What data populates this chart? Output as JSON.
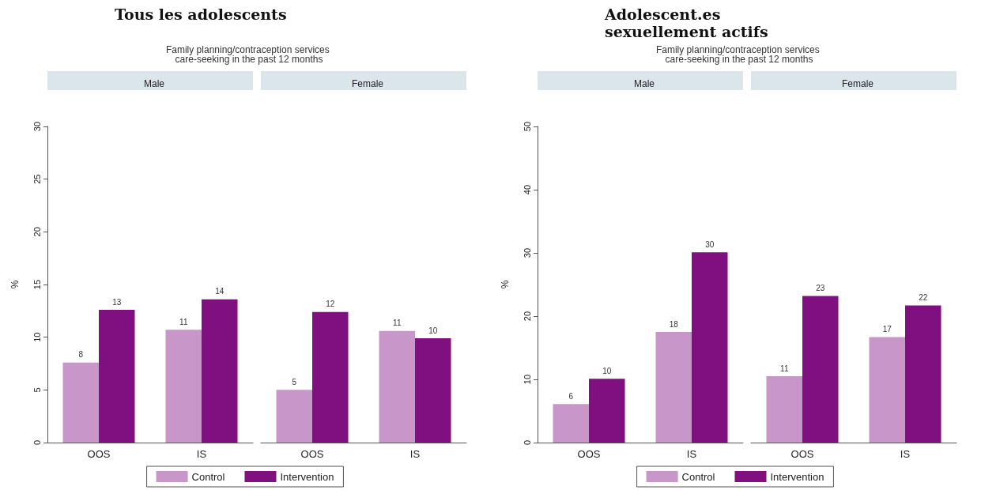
{
  "chart_data": [
    {
      "type": "bar",
      "title": "Tous les adolescents",
      "subtitle": "Family planning/contraception services care-seeking in the past 12 months",
      "ylabel": "%",
      "annotations": [
        "Male",
        "Female"
      ],
      "categories": [
        "OOS",
        "IS",
        "OOS",
        "IS"
      ],
      "ylim": [
        0,
        30
      ],
      "yticks": [
        0,
        5,
        10,
        15,
        20,
        25,
        30
      ],
      "grid": false,
      "legend": "bottom",
      "series": [
        {
          "name": "Control",
          "color": "#c896c8",
          "values": [
            7.6,
            10.7,
            5.0,
            10.6
          ],
          "value_labels": [
            "8",
            "11",
            "5",
            "11"
          ]
        },
        {
          "name": "Intervention",
          "color": "#801080",
          "values": [
            12.6,
            13.6,
            12.4,
            9.9
          ],
          "value_labels": [
            "13",
            "14",
            "12",
            "10"
          ]
        }
      ]
    },
    {
      "type": "bar",
      "title": "Adolescent.es sexuellement actifs",
      "subtitle": "Family planning/contraception services care-seeking in the past 12 months",
      "ylabel": "%",
      "annotations": [
        "Male",
        "Female"
      ],
      "categories": [
        "OOS",
        "IS",
        "OOS",
        "IS"
      ],
      "ylim": [
        0,
        50
      ],
      "yticks": [
        0,
        10,
        20,
        30,
        40,
        50
      ],
      "grid": false,
      "legend": "bottom",
      "series": [
        {
          "name": "Control",
          "color": "#c896c8",
          "values": [
            6.1,
            17.5,
            10.5,
            16.7
          ],
          "value_labels": [
            "6",
            "18",
            "11",
            "17"
          ]
        },
        {
          "name": "Intervention",
          "color": "#801080",
          "values": [
            10.1,
            30.1,
            23.2,
            21.7
          ],
          "value_labels": [
            "10",
            "30",
            "23",
            "22"
          ]
        }
      ]
    }
  ]
}
